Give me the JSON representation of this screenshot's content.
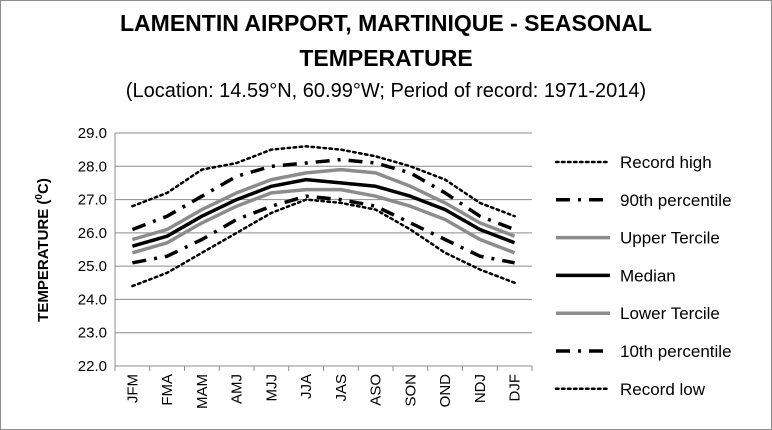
{
  "chart_data": {
    "type": "line",
    "title_line1": "LAMENTIN AIRPORT, MARTINIQUE - SEASONAL",
    "title_line2": "TEMPERATURE",
    "subtitle": "(Location: 14.59°N, 60.99°W; Period of record: 1971-2014)",
    "ylabel": "TEMPERATURE (",
    "ylabel_sup": "0",
    "ylabel_end": "C)",
    "xlabel": "",
    "ylim": [
      22.0,
      29.0
    ],
    "yticks": [
      "22.0",
      "23.0",
      "24.0",
      "25.0",
      "26.0",
      "27.0",
      "28.0",
      "29.0"
    ],
    "grid": true,
    "legend_position": "right",
    "categories": [
      "JFM",
      "FMA",
      "MAM",
      "AMJ",
      "MJJ",
      "JJA",
      "JAS",
      "ASO",
      "SON",
      "OND",
      "NDJ",
      "DJF"
    ],
    "series": [
      {
        "name": "Record high",
        "style": "dotted",
        "color": "#000000",
        "values": [
          26.8,
          27.2,
          27.9,
          28.1,
          28.5,
          28.6,
          28.5,
          28.3,
          28.0,
          27.6,
          26.9,
          26.5
        ]
      },
      {
        "name": "90th percentile",
        "style": "dashdot",
        "color": "#000000",
        "values": [
          26.1,
          26.5,
          27.1,
          27.7,
          28.0,
          28.1,
          28.2,
          28.1,
          27.8,
          27.2,
          26.5,
          26.1
        ]
      },
      {
        "name": "Upper Tercile",
        "style": "solid",
        "color": "#8c8c8c",
        "values": [
          25.8,
          26.1,
          26.7,
          27.2,
          27.6,
          27.8,
          27.9,
          27.8,
          27.4,
          26.9,
          26.3,
          25.9
        ]
      },
      {
        "name": "Median",
        "style": "solid",
        "color": "#000000",
        "values": [
          25.6,
          25.9,
          26.5,
          27.0,
          27.4,
          27.6,
          27.5,
          27.4,
          27.1,
          26.7,
          26.1,
          25.7
        ]
      },
      {
        "name": "Lower Tercile",
        "style": "solid",
        "color": "#8c8c8c",
        "values": [
          25.4,
          25.7,
          26.3,
          26.8,
          27.2,
          27.3,
          27.3,
          27.1,
          26.8,
          26.4,
          25.8,
          25.4
        ]
      },
      {
        "name": "10th percentile",
        "style": "dashdot",
        "color": "#000000",
        "values": [
          25.1,
          25.3,
          25.8,
          26.4,
          26.8,
          27.1,
          27.0,
          26.8,
          26.3,
          25.8,
          25.3,
          25.1
        ]
      },
      {
        "name": "Record low",
        "style": "dotted",
        "color": "#000000",
        "values": [
          24.4,
          24.8,
          25.4,
          26.0,
          26.6,
          27.0,
          26.9,
          26.7,
          26.1,
          25.4,
          24.9,
          24.5
        ]
      }
    ]
  }
}
